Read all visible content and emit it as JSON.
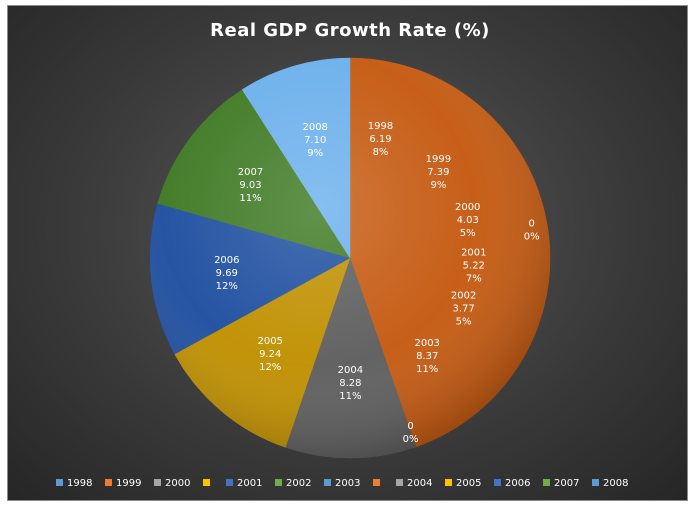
{
  "chart_data": {
    "type": "pie",
    "title": "Real GDP Growth Rate (%)",
    "slices": [
      {
        "category": "1998",
        "value": 6.19,
        "value_label": "6.19",
        "percent_label": "8%",
        "color": "#c55a11"
      },
      {
        "category": "1999",
        "value": 7.39,
        "value_label": "7.39",
        "percent_label": "9%",
        "color": "#c55a11"
      },
      {
        "category": "2000",
        "value": 4.03,
        "value_label": "4.03",
        "percent_label": "5%",
        "color": "#c55a11"
      },
      {
        "category": "",
        "value": 0,
        "value_label": "0",
        "percent_label": "0%",
        "color": "#c55a11"
      },
      {
        "category": "2001",
        "value": 5.22,
        "value_label": "5.22",
        "percent_label": "7%",
        "color": "#c55a11"
      },
      {
        "category": "2002",
        "value": 3.77,
        "value_label": "3.77",
        "percent_label": "5%",
        "color": "#c55a11"
      },
      {
        "category": "2003",
        "value": 8.37,
        "value_label": "8.37",
        "percent_label": "11%",
        "color": "#c55a11"
      },
      {
        "category": "",
        "value": 0,
        "value_label": "0",
        "percent_label": "0%",
        "color": "#c55a11"
      },
      {
        "category": "2004",
        "value": 8.28,
        "value_label": "8.28",
        "percent_label": "11%",
        "color": "#5e5e5e"
      },
      {
        "category": "2005",
        "value": 9.24,
        "value_label": "9.24",
        "percent_label": "12%",
        "color": "#c09000"
      },
      {
        "category": "2006",
        "value": 9.69,
        "value_label": "9.69",
        "percent_label": "12%",
        "color": "#1f4fa0"
      },
      {
        "category": "2007",
        "value": 9.03,
        "value_label": "9.03",
        "percent_label": "11%",
        "color": "#3f7a24"
      },
      {
        "category": "2008",
        "value": 7.1,
        "value_label": "7.10",
        "percent_label": "9%",
        "color": "#6cb0ec"
      }
    ],
    "legend": {
      "position": "bottom",
      "entries": [
        {
          "label": "1998",
          "color": "#5b9bd5"
        },
        {
          "label": "1999",
          "color": "#ed7d31"
        },
        {
          "label": "2000",
          "color": "#a5a5a5"
        },
        {
          "label": "",
          "color": "#ffc000"
        },
        {
          "label": "2001",
          "color": "#4472c4"
        },
        {
          "label": "2002",
          "color": "#70ad47"
        },
        {
          "label": "2003",
          "color": "#5b9bd5"
        },
        {
          "label": "",
          "color": "#ed7d31"
        },
        {
          "label": "2004",
          "color": "#a5a5a5"
        },
        {
          "label": "2005",
          "color": "#ffc000"
        },
        {
          "label": "2006",
          "color": "#4472c4"
        },
        {
          "label": "2007",
          "color": "#70ad47"
        },
        {
          "label": "2008",
          "color": "#5b9bd5"
        }
      ]
    }
  }
}
